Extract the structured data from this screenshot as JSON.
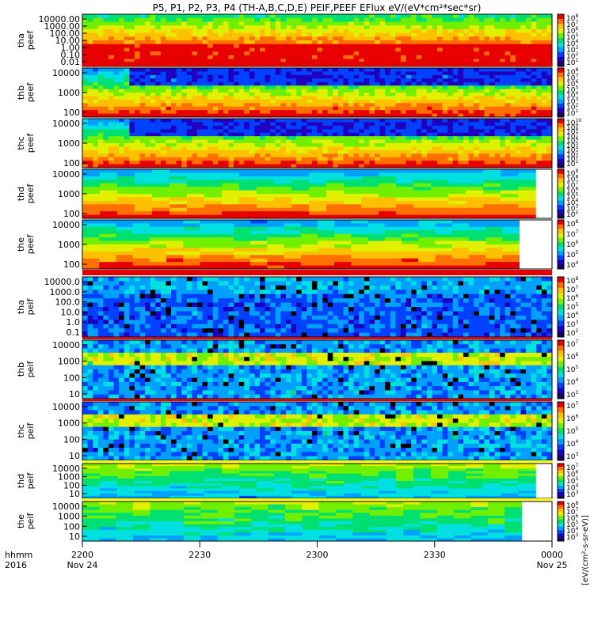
{
  "chart_data": {
    "type": "heatmap",
    "title": "P5, P1, P2, P3, P4 (TH-A,B,C,D,E) PEIF,PEEF EFlux eV/(eV*cm²*sec*sr)",
    "x_axis": {
      "unit_label": "hhmm",
      "year_label": "2016",
      "ticks": [
        {
          "time": "2200",
          "date": "Nov 24"
        },
        {
          "time": "2230",
          "date": ""
        },
        {
          "time": "2300",
          "date": ""
        },
        {
          "time": "2330",
          "date": ""
        },
        {
          "time": "0000",
          "date": "Nov 25"
        }
      ],
      "range": [
        "2016-11-24 22:00",
        "2016-11-25 00:00"
      ]
    },
    "colorbar_unit": "[eV/(cm²-s-sr-eV)]",
    "panels": [
      {
        "probe": "tha",
        "product": "peef",
        "scale": "log",
        "yticks": [
          "10000.00",
          "1000.00",
          "100.00",
          "10.00",
          "1.00",
          "0.10",
          "0.01"
        ],
        "colorbar": [
          8,
          7,
          6,
          5,
          4,
          3,
          2,
          1
        ]
      },
      {
        "probe": "thb",
        "product": "peef",
        "scale": "log",
        "yticks": [
          "10000",
          "1000",
          "100"
        ],
        "colorbar": [
          8,
          7,
          6,
          5,
          4,
          3,
          2,
          1
        ]
      },
      {
        "probe": "thc",
        "product": "peef",
        "scale": "log",
        "yticks": [
          "10000",
          "1000",
          "100"
        ],
        "colorbar": [
          10,
          9,
          8,
          7,
          6,
          5,
          4,
          3,
          2,
          1
        ]
      },
      {
        "probe": "thd",
        "product": "peef",
        "scale": "log",
        "yticks": [
          "10000",
          "1000",
          "100"
        ],
        "colorbar": [
          9,
          8,
          7,
          6,
          5,
          4,
          3,
          2
        ]
      },
      {
        "probe": "the",
        "product": "peef",
        "scale": "log",
        "yticks": [
          "10000",
          "1000",
          "100"
        ],
        "colorbar": [
          8,
          7,
          6,
          5,
          4
        ]
      },
      {
        "probe": "tha",
        "product": "peif",
        "scale": "log",
        "yticks": [
          "10000.0",
          "1000.0",
          "100.0",
          "10.0",
          "1.0",
          "0.1"
        ],
        "colorbar": [
          8,
          7,
          6,
          5,
          4,
          3,
          2
        ]
      },
      {
        "probe": "thb",
        "product": "peif",
        "scale": "log",
        "yticks": [
          "10000",
          "1000",
          "100",
          "10"
        ],
        "colorbar": [
          7,
          6,
          5,
          4,
          3
        ]
      },
      {
        "probe": "thc",
        "product": "peif",
        "scale": "log",
        "yticks": [
          "10000",
          "1000",
          "100",
          "10"
        ],
        "colorbar": [
          7,
          6,
          5,
          4,
          3
        ]
      },
      {
        "probe": "thd",
        "product": "peif",
        "scale": "log",
        "yticks": [
          "10000",
          "1000",
          "100",
          "10"
        ],
        "colorbar": [
          7,
          6,
          5,
          4,
          3
        ]
      },
      {
        "probe": "the",
        "product": "peif",
        "scale": "log",
        "yticks": [
          "10000",
          "1000",
          "100",
          "10"
        ],
        "colorbar": [
          8,
          7,
          6,
          5,
          4,
          3
        ]
      }
    ]
  },
  "colors": {
    "colormap": [
      "#1a0060",
      "#2000c0",
      "#0040ff",
      "#00a0ff",
      "#00e0e0",
      "#00e070",
      "#70f000",
      "#e0f000",
      "#ffc000",
      "#ff7000",
      "#e80000"
    ],
    "bar_red": "#e00000",
    "bar_yellow": "#ffff00",
    "bar_black": "#000000"
  }
}
